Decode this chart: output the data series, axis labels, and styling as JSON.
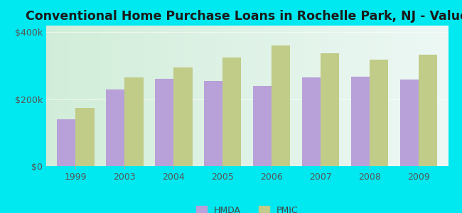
{
  "title": "Conventional Home Purchase Loans in Rochelle Park, NJ - Value",
  "categories": [
    "1999",
    "2003",
    "2004",
    "2005",
    "2006",
    "2007",
    "2008",
    "2009"
  ],
  "hmda_values": [
    140000,
    230000,
    260000,
    255000,
    240000,
    265000,
    268000,
    258000
  ],
  "pmic_values": [
    175000,
    265000,
    295000,
    325000,
    360000,
    338000,
    318000,
    332000
  ],
  "hmda_color": "#b8a0d8",
  "pmic_color": "#c0cc88",
  "background_color": "#00e8f0",
  "plot_bg_left": "#d0edd8",
  "plot_bg_right": "#e8f4f0",
  "ylabel_ticks": [
    "$0",
    "$200k",
    "$400k"
  ],
  "ytick_values": [
    0,
    200000,
    400000
  ],
  "ylim": [
    0,
    420000
  ],
  "bar_width": 0.38,
  "title_fontsize": 12.5,
  "tick_fontsize": 9,
  "legend_fontsize": 9
}
